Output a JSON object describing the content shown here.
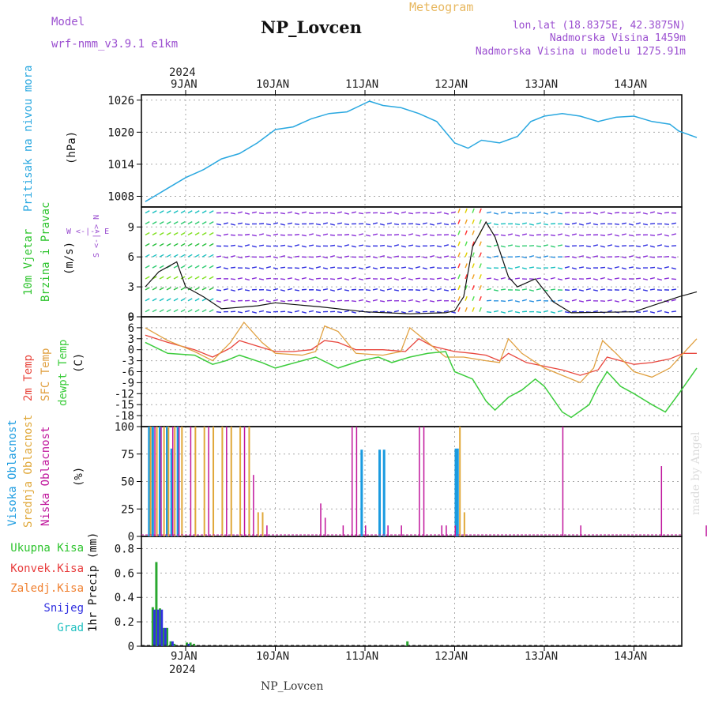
{
  "header": {
    "model_label": "Model",
    "model_name": "wrf-nmm_v3.9.1 e1km",
    "title": "NP_Lovcen",
    "meteogram_label": "Meteogram",
    "lonlat": "lon,lat (18.8375E, 42.3875N)",
    "altitude": "Nadmorska Visina 1459m",
    "model_altitude": "Nadmorska Visina u modelu 1275.91m"
  },
  "footer": {
    "station": "NP_Lovcen",
    "credit": "made by Angel"
  },
  "axis": {
    "year": "2024",
    "days": [
      "9JAN",
      "10JAN",
      "11JAN",
      "12JAN",
      "13JAN",
      "14JAN"
    ]
  },
  "panels": {
    "pressure": {
      "label": "Pritisak na nivou mora",
      "unit": "(hPa)"
    },
    "wind": {
      "label1": "10m Vjetar",
      "label2": "Brzina i Pravac",
      "unit": "(m/s)",
      "compass": "W <-|-> E",
      "compass_ns": "S <-|-> N"
    },
    "temp": {
      "label1": "2m Temp",
      "label2": "SFC Temp",
      "label3": "dewpt Temp",
      "unit": "(C)"
    },
    "cloud": {
      "label1": "Visoka Oblacnost",
      "label2": "Srednja Oblacnost",
      "label3": "Niska Oblacnost",
      "unit": "(%)"
    },
    "precip": {
      "unit": "1hr Precip (mm)",
      "legend": [
        "Ukupna Kisa",
        "Konvek.Kisa",
        "Zaledj.Kisa",
        "Snijeg",
        "Grad"
      ]
    }
  },
  "colors": {
    "pressure": "#2aa8e0",
    "temp2m": "#e8453c",
    "sfc": "#e0a040",
    "dewpt": "#3ccc3c",
    "cloud_high": "#1a9be0",
    "cloud_mid": "#e0a83a",
    "cloud_low": "#c0169c",
    "total": "#2aa830",
    "conv": "#e83c3c",
    "freez": "#f08030",
    "snow": "#3030e0",
    "grad": "#20c0c0",
    "purple": "#9b4fd0"
  },
  "chart_data": [
    {
      "type": "line",
      "title": "",
      "ylabel": "Pritisak na nivou mora (hPa)",
      "ylim": [
        1006,
        1027
      ],
      "yticks": [
        1008,
        1014,
        1020,
        1026
      ],
      "x_unit": "days since 9JAN 00UTC",
      "series": [
        {
          "name": "Pritisak na nivou mora",
          "points": [
            [
              -0.45,
              1007
            ],
            [
              -0.35,
              1008
            ],
            [
              -0.2,
              1009.5
            ],
            [
              0,
              1011.5
            ],
            [
              0.2,
              1013
            ],
            [
              0.4,
              1015
            ],
            [
              0.6,
              1016
            ],
            [
              0.8,
              1018
            ],
            [
              1.0,
              1020.5
            ],
            [
              1.2,
              1021
            ],
            [
              1.4,
              1022.5
            ],
            [
              1.6,
              1023.5
            ],
            [
              1.8,
              1023.8
            ],
            [
              1.95,
              1025
            ],
            [
              2.05,
              1025.8
            ],
            [
              2.2,
              1025
            ],
            [
              2.4,
              1024.6
            ],
            [
              2.6,
              1023.5
            ],
            [
              2.8,
              1022
            ],
            [
              3.0,
              1018
            ],
            [
              3.15,
              1017
            ],
            [
              3.3,
              1018.5
            ],
            [
              3.5,
              1018
            ],
            [
              3.7,
              1019.2
            ],
            [
              3.85,
              1022
            ],
            [
              4.0,
              1023
            ],
            [
              4.2,
              1023.5
            ],
            [
              4.4,
              1023
            ],
            [
              4.6,
              1022
            ],
            [
              4.8,
              1022.8
            ],
            [
              5.0,
              1023
            ],
            [
              5.2,
              1022
            ],
            [
              5.4,
              1021.5
            ],
            [
              5.5,
              1020.2
            ],
            [
              5.7,
              1019
            ]
          ]
        }
      ]
    },
    {
      "type": "line",
      "title": "",
      "ylabel": "10m Vjetar Brzina i Pravac (m/s)",
      "ylim": [
        0,
        11
      ],
      "yticks": [
        0,
        3,
        6,
        9
      ],
      "series": [
        {
          "name": "Brzina",
          "points": [
            [
              -0.45,
              3
            ],
            [
              -0.3,
              4.5
            ],
            [
              -0.1,
              5.5
            ],
            [
              0.0,
              3
            ],
            [
              0.2,
              2
            ],
            [
              0.4,
              0.8
            ],
            [
              0.8,
              1.1
            ],
            [
              1.0,
              1.4
            ],
            [
              1.5,
              1
            ],
            [
              2.0,
              0.5
            ],
            [
              2.5,
              0.3
            ],
            [
              2.9,
              0.4
            ],
            [
              3.0,
              0.6
            ],
            [
              3.1,
              2
            ],
            [
              3.2,
              7
            ],
            [
              3.35,
              9.5
            ],
            [
              3.45,
              8
            ],
            [
              3.6,
              4
            ],
            [
              3.7,
              3
            ],
            [
              3.9,
              3.8
            ],
            [
              4.1,
              1.5
            ],
            [
              4.3,
              0.4
            ],
            [
              5.0,
              0.5
            ],
            [
              5.5,
              2
            ],
            [
              5.7,
              2.5
            ]
          ]
        }
      ]
    },
    {
      "type": "line",
      "title": "",
      "ylabel": "Temp (C)",
      "ylim": [
        -21,
        9
      ],
      "yticks": [
        -18,
        -15,
        -12,
        -9,
        -6,
        -3,
        0,
        3,
        6,
        9
      ],
      "series": [
        {
          "name": "2m Temp",
          "points": [
            [
              -0.45,
              4
            ],
            [
              -0.2,
              2
            ],
            [
              0.1,
              0
            ],
            [
              0.3,
              -2
            ],
            [
              0.5,
              0.5
            ],
            [
              0.6,
              2.5
            ],
            [
              0.8,
              1
            ],
            [
              1.0,
              -0.5
            ],
            [
              1.2,
              -0.5
            ],
            [
              1.4,
              0
            ],
            [
              1.55,
              2.5
            ],
            [
              1.7,
              2
            ],
            [
              1.9,
              0
            ],
            [
              2.2,
              0
            ],
            [
              2.45,
              -0.5
            ],
            [
              2.6,
              3
            ],
            [
              2.75,
              1
            ],
            [
              3.0,
              -0.5
            ],
            [
              3.2,
              -1
            ],
            [
              3.35,
              -1.5
            ],
            [
              3.5,
              -3
            ],
            [
              3.6,
              -1
            ],
            [
              3.8,
              -3.5
            ],
            [
              4.0,
              -4.5
            ],
            [
              4.2,
              -5.5
            ],
            [
              4.4,
              -7
            ],
            [
              4.6,
              -5.5
            ],
            [
              4.7,
              -2
            ],
            [
              4.85,
              -3
            ],
            [
              5.0,
              -4
            ],
            [
              5.2,
              -3.5
            ],
            [
              5.4,
              -2.5
            ],
            [
              5.55,
              -1
            ],
            [
              5.7,
              -1
            ]
          ]
        },
        {
          "name": "SFC Temp",
          "points": [
            [
              -0.45,
              6
            ],
            [
              -0.2,
              2.5
            ],
            [
              0.1,
              -0.5
            ],
            [
              0.3,
              -3
            ],
            [
              0.5,
              2
            ],
            [
              0.65,
              7.5
            ],
            [
              0.85,
              2
            ],
            [
              1.0,
              -1
            ],
            [
              1.3,
              -1.5
            ],
            [
              1.45,
              -0.5
            ],
            [
              1.55,
              6.5
            ],
            [
              1.7,
              5
            ],
            [
              1.9,
              -1
            ],
            [
              2.2,
              -1.5
            ],
            [
              2.4,
              -0.5
            ],
            [
              2.5,
              6
            ],
            [
              2.65,
              3
            ],
            [
              2.9,
              -2
            ],
            [
              3.1,
              -2
            ],
            [
              3.35,
              -3
            ],
            [
              3.5,
              -3.5
            ],
            [
              3.6,
              3
            ],
            [
              3.75,
              -1
            ],
            [
              4.0,
              -5
            ],
            [
              4.2,
              -7
            ],
            [
              4.4,
              -9
            ],
            [
              4.55,
              -5
            ],
            [
              4.65,
              2.5
            ],
            [
              4.8,
              -1
            ],
            [
              5.0,
              -6
            ],
            [
              5.2,
              -7.5
            ],
            [
              5.4,
              -5
            ],
            [
              5.55,
              -1
            ],
            [
              5.7,
              3
            ]
          ]
        },
        {
          "name": "dewpt Temp",
          "points": [
            [
              -0.45,
              2
            ],
            [
              -0.2,
              -1
            ],
            [
              0.1,
              -1.5
            ],
            [
              0.3,
              -4
            ],
            [
              0.45,
              -3
            ],
            [
              0.6,
              -1.5
            ],
            [
              0.85,
              -3.5
            ],
            [
              1.0,
              -5
            ],
            [
              1.3,
              -3
            ],
            [
              1.45,
              -2
            ],
            [
              1.7,
              -5
            ],
            [
              1.95,
              -3
            ],
            [
              2.15,
              -2
            ],
            [
              2.3,
              -3.5
            ],
            [
              2.5,
              -2
            ],
            [
              2.7,
              -1
            ],
            [
              2.9,
              -0.5
            ],
            [
              3.0,
              -6
            ],
            [
              3.2,
              -8
            ],
            [
              3.35,
              -14
            ],
            [
              3.45,
              -16.5
            ],
            [
              3.6,
              -13
            ],
            [
              3.75,
              -11
            ],
            [
              3.9,
              -8
            ],
            [
              4.0,
              -10
            ],
            [
              4.2,
              -17
            ],
            [
              4.3,
              -18.5
            ],
            [
              4.5,
              -15
            ],
            [
              4.6,
              -10
            ],
            [
              4.7,
              -6
            ],
            [
              4.85,
              -10
            ],
            [
              5.0,
              -12
            ],
            [
              5.2,
              -15
            ],
            [
              5.35,
              -17
            ],
            [
              5.5,
              -12
            ],
            [
              5.7,
              -5
            ]
          ]
        }
      ]
    },
    {
      "type": "bar",
      "title": "",
      "ylabel": "Oblacnost (%)",
      "ylim": [
        0,
        100
      ],
      "yticks": [
        0,
        25,
        50,
        75,
        100
      ],
      "series": [
        {
          "name": "Visoka Oblacnost",
          "points": [
            [
              -0.42,
              100
            ],
            [
              -0.38,
              100
            ],
            [
              -0.3,
              100
            ],
            [
              -0.22,
              100
            ],
            [
              -0.17,
              80
            ],
            [
              -0.1,
              100
            ],
            [
              1.95,
              79
            ],
            [
              2.15,
              79
            ],
            [
              2.2,
              79
            ],
            [
              3.0,
              80
            ],
            [
              3.02,
              80
            ]
          ]
        },
        {
          "name": "Srednja Oblacnost",
          "points": [
            [
              -0.4,
              100
            ],
            [
              -0.33,
              100
            ],
            [
              -0.25,
              100
            ],
            [
              -0.2,
              100
            ],
            [
              -0.13,
              100
            ],
            [
              -0.05,
              100
            ],
            [
              0.1,
              100
            ],
            [
              0.2,
              100
            ],
            [
              0.3,
              100
            ],
            [
              0.4,
              100
            ],
            [
              0.5,
              100
            ],
            [
              0.6,
              100
            ],
            [
              0.7,
              100
            ],
            [
              0.8,
              22
            ],
            [
              0.85,
              22
            ],
            [
              3.05,
              100
            ],
            [
              3.1,
              22
            ]
          ]
        },
        {
          "name": "Niska Oblacnost",
          "points": [
            [
              -0.35,
              100
            ],
            [
              -0.28,
              100
            ],
            [
              -0.15,
              100
            ],
            [
              -0.08,
              100
            ],
            [
              0.05,
              100
            ],
            [
              0.25,
              100
            ],
            [
              0.45,
              100
            ],
            [
              0.65,
              100
            ],
            [
              0.75,
              56
            ],
            [
              0.9,
              10
            ],
            [
              1.5,
              30
            ],
            [
              1.55,
              17
            ],
            [
              1.75,
              10
            ],
            [
              1.85,
              100
            ],
            [
              1.9,
              100
            ],
            [
              2.0,
              10
            ],
            [
              2.25,
              10
            ],
            [
              2.4,
              10
            ],
            [
              2.6,
              100
            ],
            [
              2.65,
              100
            ],
            [
              2.85,
              10
            ],
            [
              2.9,
              10
            ],
            [
              3.0,
              10
            ],
            [
              4.2,
              100
            ],
            [
              4.4,
              10
            ],
            [
              5.3,
              64
            ],
            [
              5.8,
              10
            ],
            [
              6.2,
              9
            ]
          ]
        }
      ]
    },
    {
      "type": "bar",
      "title": "",
      "ylabel": "1hr Precip (mm)",
      "ylim": [
        0,
        0.9
      ],
      "yticks": [
        0,
        0.2,
        0.4,
        0.6,
        0.8
      ],
      "series": [
        {
          "name": "Ukupna Kisa",
          "points": [
            [
              -0.38,
              0.32
            ],
            [
              -0.34,
              0.69
            ],
            [
              -0.3,
              0.31
            ],
            [
              -0.26,
              0.15
            ],
            [
              -0.22,
              0.15
            ],
            [
              -0.18,
              0.04
            ],
            [
              -0.14,
              0.02
            ],
            [
              0.0,
              0.03
            ],
            [
              0.04,
              0.03
            ],
            [
              0.08,
              0.02
            ],
            [
              2.46,
              0.04
            ]
          ]
        },
        {
          "name": "Snijeg",
          "points": [
            [
              -0.36,
              0.3
            ],
            [
              -0.32,
              0.3
            ],
            [
              -0.28,
              0.3
            ],
            [
              -0.24,
              0.15
            ],
            [
              -0.16,
              0.04
            ],
            [
              0.02,
              0.02
            ]
          ]
        }
      ]
    }
  ]
}
